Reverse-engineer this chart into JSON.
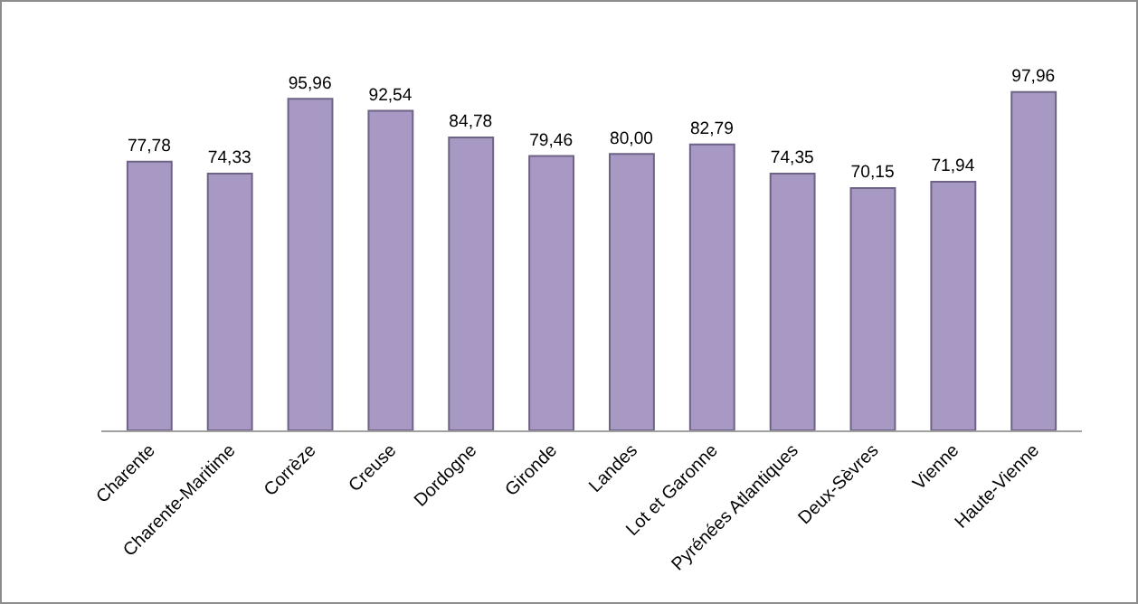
{
  "chart_data": {
    "type": "bar",
    "categories": [
      "Charente",
      "Charente-Maritime",
      "Corrèze",
      "Creuse",
      "Dordogne",
      "Gironde",
      "Landes",
      "Lot et Garonne",
      "Pyrénées Atlantiques",
      "Deux-Sèvres",
      "Vienne",
      "Haute-Vienne"
    ],
    "values": [
      77.78,
      74.33,
      95.96,
      92.54,
      84.78,
      79.46,
      80.0,
      82.79,
      74.35,
      70.15,
      71.94,
      97.96
    ],
    "value_labels": [
      "77,78",
      "74,33",
      "95,96",
      "92,54",
      "84,78",
      "79,46",
      "80,00",
      "82,79",
      "74,35",
      "70,15",
      "71,94",
      "97,96"
    ],
    "color": "#a899c4",
    "tick_labels": "x"
  }
}
